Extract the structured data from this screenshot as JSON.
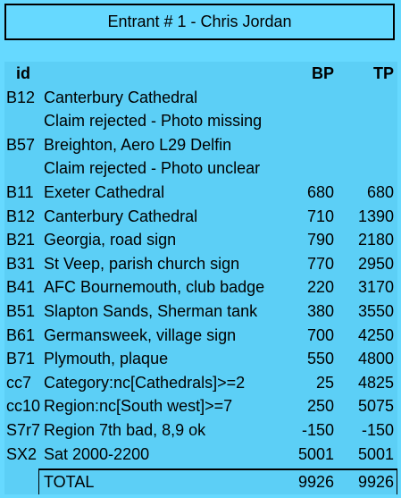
{
  "header": {
    "title": "Entrant # 1 - Chris Jordan"
  },
  "table": {
    "columns": {
      "id": "id",
      "bp": "BP",
      "tp": "TP"
    },
    "rows": [
      {
        "id": "B12",
        "desc": "Canterbury Cathedral",
        "bp": "",
        "tp": ""
      },
      {
        "id": "",
        "desc": "Claim rejected - Photo missing",
        "bp": "",
        "tp": ""
      },
      {
        "id": "B57",
        "desc": "Breighton, Aero L29 Delfin",
        "bp": "",
        "tp": ""
      },
      {
        "id": "",
        "desc": "Claim rejected - Photo unclear",
        "bp": "",
        "tp": ""
      },
      {
        "id": "B11",
        "desc": "Exeter Cathedral",
        "bp": "680",
        "tp": "680"
      },
      {
        "id": "B12",
        "desc": "Canterbury Cathedral",
        "bp": "710",
        "tp": "1390"
      },
      {
        "id": "B21",
        "desc": "Georgia, road sign",
        "bp": "790",
        "tp": "2180"
      },
      {
        "id": "B31",
        "desc": "St Veep, parish church sign",
        "bp": "770",
        "tp": "2950"
      },
      {
        "id": "B41",
        "desc": "AFC Bournemouth, club badge",
        "bp": "220",
        "tp": "3170"
      },
      {
        "id": "B51",
        "desc": "Slapton Sands, Sherman tank",
        "bp": "380",
        "tp": "3550"
      },
      {
        "id": "B61",
        "desc": "Germansweek, village sign",
        "bp": "700",
        "tp": "4250"
      },
      {
        "id": "B71",
        "desc": "Plymouth, plaque",
        "bp": "550",
        "tp": "4800"
      },
      {
        "id": "cc7",
        "desc": "Category:nc[Cathedrals]>=2",
        "bp": "25",
        "tp": "4825"
      },
      {
        "id": "cc10",
        "desc": "Region:nc[South west]>=7",
        "bp": "250",
        "tp": "5075"
      },
      {
        "id": "S7r7",
        "desc": "Region 7th bad, 8,9 ok",
        "bp": "-150",
        "tp": "-150"
      },
      {
        "id": "SX2",
        "desc": "Sat 2000-2200",
        "bp": "5001",
        "tp": "5001"
      }
    ],
    "total": {
      "label": "TOTAL",
      "bp": "9926",
      "tp": "9926"
    }
  }
}
